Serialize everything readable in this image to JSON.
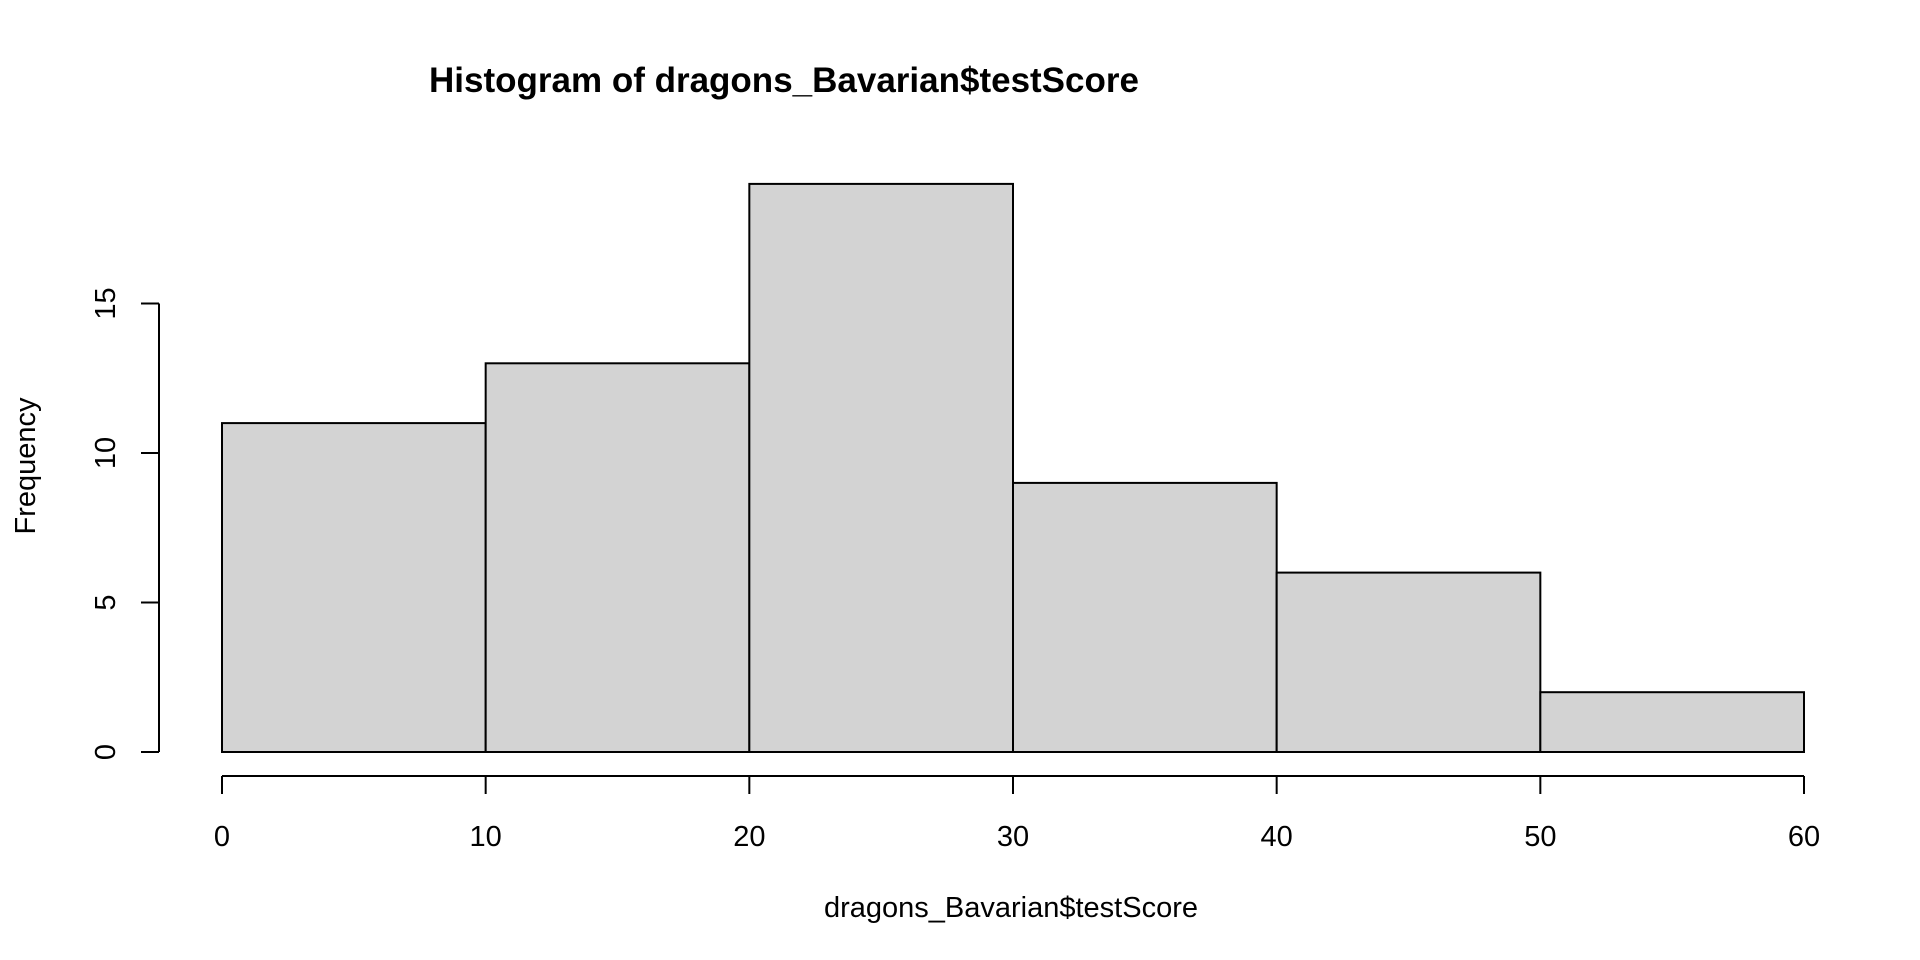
{
  "chart_data": {
    "type": "bar",
    "title": "Histogram of dragons_Bavarian$testScore",
    "xlabel": "dragons_Bavarian$testScore",
    "ylabel": "Frequency",
    "bins": [
      {
        "start": 0,
        "end": 10,
        "count": 11
      },
      {
        "start": 10,
        "end": 20,
        "count": 13
      },
      {
        "start": 20,
        "end": 30,
        "count": 19
      },
      {
        "start": 30,
        "end": 40,
        "count": 9
      },
      {
        "start": 40,
        "end": 50,
        "count": 6
      },
      {
        "start": 50,
        "end": 60,
        "count": 2
      }
    ],
    "xlim": [
      0,
      60
    ],
    "ylim": [
      0,
      19
    ],
    "x_ticks": [
      0,
      10,
      20,
      30,
      40,
      50,
      60
    ],
    "y_ticks": [
      0,
      5,
      10,
      15
    ],
    "bar_color": "#d3d3d3",
    "grid": false
  }
}
